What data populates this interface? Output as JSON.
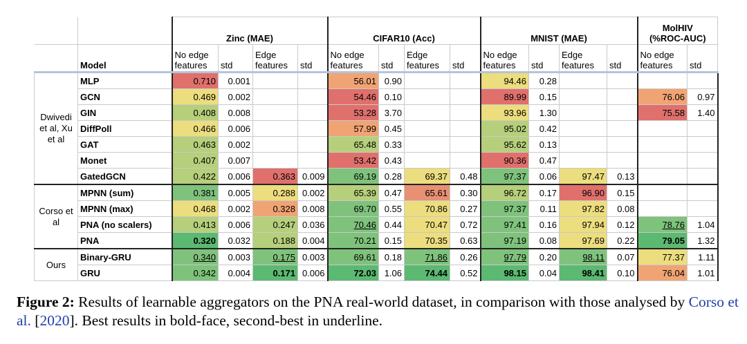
{
  "header": {
    "datasets": [
      {
        "name": "Zinc (MAE)"
      },
      {
        "name": "CIFAR10 (Acc)"
      },
      {
        "name": "MNIST (MAE)"
      },
      {
        "name": "MolHIV (%ROC-AUC)",
        "line1": "MolHIV",
        "line2": "(%ROC-AUC)"
      }
    ],
    "model_label": "Model",
    "no_edge_1": "No edge",
    "no_edge_2": "features",
    "edge_1": "Edge",
    "edge_2": "features",
    "std": "std"
  },
  "groups": [
    {
      "label": "Dwivedi et al, Xu et al",
      "l1": "Dwivedi",
      "l2": "et al, Xu",
      "l3": "et al"
    },
    {
      "label": "Corso et al",
      "l1": "Corso et",
      "l2": "al"
    },
    {
      "label": "Ours",
      "l1": "Ours"
    }
  ],
  "colors": {
    "dark_green": "#5cb972",
    "green": "#7fc27c",
    "light_green": "#b6cf7b",
    "yellow": "#ecdd7e",
    "orange": "#f0a474",
    "red": "#e0706c",
    "light_red": "#e89073"
  },
  "rows": [
    {
      "model": "MLP",
      "cells": [
        "0.710",
        "0.001",
        "",
        "",
        "56.01",
        "0.90",
        "",
        "",
        "94.46",
        "0.28",
        "",
        "",
        "",
        ""
      ]
    },
    {
      "model": "GCN",
      "cells": [
        "0.469",
        "0.002",
        "",
        "",
        "54.46",
        "0.10",
        "",
        "",
        "89.99",
        "0.15",
        "",
        "",
        "76.06",
        "0.97"
      ]
    },
    {
      "model": "GIN",
      "cells": [
        "0.408",
        "0.008",
        "",
        "",
        "53.28",
        "3.70",
        "",
        "",
        "93.96",
        "1.30",
        "",
        "",
        "75.58",
        "1.40"
      ]
    },
    {
      "model": "DiffPoll",
      "cells": [
        "0.466",
        "0.006",
        "",
        "",
        "57.99",
        "0.45",
        "",
        "",
        "95.02",
        "0.42",
        "",
        "",
        "",
        ""
      ]
    },
    {
      "model": "GAT",
      "cells": [
        "0.463",
        "0.002",
        "",
        "",
        "65.48",
        "0.33",
        "",
        "",
        "95.62",
        "0.13",
        "",
        "",
        "",
        ""
      ]
    },
    {
      "model": "Monet",
      "cells": [
        "0.407",
        "0.007",
        "",
        "",
        "53.42",
        "0.43",
        "",
        "",
        "90.36",
        "0.47",
        "",
        "",
        "",
        ""
      ]
    },
    {
      "model": "GatedGCN",
      "cells": [
        "0.422",
        "0.006",
        "0.363",
        "0.009",
        "69.19",
        "0.28",
        "69.37",
        "0.48",
        "97.37",
        "0.06",
        "97.47",
        "0.13",
        "",
        ""
      ]
    },
    {
      "model": "MPNN (sum)",
      "cells": [
        "0.381",
        "0.005",
        "0.288",
        "0.002",
        "65.39",
        "0.47",
        "65.61",
        "0.30",
        "96.72",
        "0.17",
        "96.90",
        "0.15",
        "",
        ""
      ]
    },
    {
      "model": "MPNN (max)",
      "cells": [
        "0.468",
        "0.002",
        "0.328",
        "0.008",
        "69.70",
        "0.55",
        "70.86",
        "0.27",
        "97.37",
        "0.11",
        "97.82",
        "0.08",
        "",
        ""
      ]
    },
    {
      "model": "PNA (no scalers)",
      "cells": [
        "0.413",
        "0.006",
        "0.247",
        "0.036",
        "70.46",
        "0.44",
        "70.47",
        "0.72",
        "97.41",
        "0.16",
        "97.94",
        "0.12",
        "78.76",
        "1.04"
      ]
    },
    {
      "model": "PNA",
      "cells": [
        "0.320",
        "0.032",
        "0.188",
        "0.004",
        "70.21",
        "0.15",
        "70.35",
        "0.63",
        "97.19",
        "0.08",
        "97.69",
        "0.22",
        "79.05",
        "1.32"
      ]
    },
    {
      "model": "Binary-GRU",
      "cells": [
        "0.340",
        "0.003",
        "0.175",
        "0.003",
        "69.61",
        "0.18",
        "71.86",
        "0.26",
        "97.79",
        "0.20",
        "98.11",
        "0.07",
        "77.37",
        "1.11"
      ]
    },
    {
      "model": "GRU",
      "cells": [
        "0.342",
        "0.004",
        "0.171",
        "0.006",
        "72.03",
        "1.06",
        "74.44",
        "0.52",
        "98.15",
        "0.04",
        "98.41",
        "0.10",
        "76.04",
        "1.01"
      ]
    }
  ],
  "caption": {
    "label": "Figure 2:",
    "text1": " Results of learnable aggregators on the PNA real-world dataset, in comparison with those analysed by ",
    "ref_name": "Corso et al.",
    "ref_open": " [",
    "ref_year": "2020",
    "text2": "]. Best results in bold-face, second-best in underline."
  }
}
